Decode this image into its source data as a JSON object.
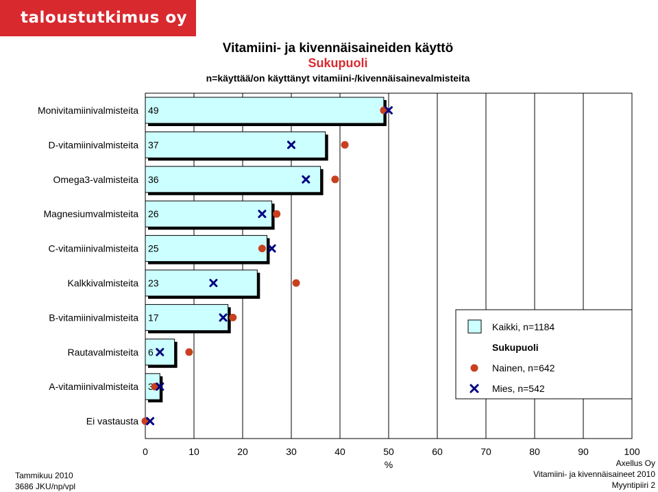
{
  "header": {
    "logo_text": "taloustutkimus oy"
  },
  "chart_data": {
    "type": "bar",
    "orientation": "horizontal",
    "title": "Vitamiini- ja kivennäisaineiden käyttö",
    "subtitle": "Sukupuoli",
    "subtitle2": "n=käyttää/on käyttänyt vitamiini-/kivennäisainevalmisteita",
    "xlabel": "%",
    "xlim": [
      0,
      100
    ],
    "xticks": [
      0,
      10,
      20,
      30,
      40,
      50,
      60,
      70,
      80,
      90,
      100
    ],
    "categories": [
      "Monivitamiinivalmisteita",
      "D-vitamiinivalmisteita",
      "Omega3-valmisteita",
      "Magnesiumvalmisteita",
      "C-vitamiinivalmisteita",
      "Kalkkivalmisteita",
      "B-vitamiinivalmisteita",
      "Rautavalmisteita",
      "A-vitamiinivalmisteita",
      "Ei vastausta"
    ],
    "series": [
      {
        "name": "Kaikki, n=1184",
        "kind": "bar",
        "color": "#ccffff",
        "values": [
          49,
          37,
          36,
          26,
          25,
          23,
          17,
          6,
          3,
          0
        ],
        "labels": [
          "49",
          "37",
          "36",
          "26",
          "25",
          "23",
          "17",
          "6",
          "3",
          ""
        ]
      },
      {
        "name": "Nainen, n=642",
        "kind": "dot",
        "color": "#c8401e",
        "values": [
          49,
          41,
          39,
          27,
          24,
          31,
          18,
          9,
          2,
          0
        ]
      },
      {
        "name": "Mies, n=542",
        "kind": "cross",
        "color": "#00007f",
        "values": [
          50,
          30,
          33,
          24,
          26,
          14,
          16,
          3,
          3,
          1
        ]
      }
    ],
    "legend": {
      "position": "right",
      "group_title": "Sukupuoli"
    },
    "grid": true
  },
  "footer": {
    "left": [
      "Tammikuu 2010",
      "3686 JKU/np/vpl"
    ],
    "right": [
      "Axellus Oy",
      "Vitamiini- ja kivennäisaineet 2010",
      "Myyntipiiri 2"
    ]
  }
}
